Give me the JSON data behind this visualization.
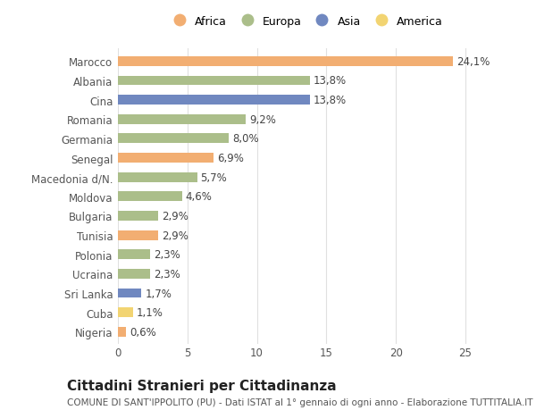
{
  "categories": [
    "Marocco",
    "Albania",
    "Cina",
    "Romania",
    "Germania",
    "Senegal",
    "Macedonia d/N.",
    "Moldova",
    "Bulgaria",
    "Tunisia",
    "Polonia",
    "Ucraina",
    "Sri Lanka",
    "Cuba",
    "Nigeria"
  ],
  "values": [
    24.1,
    13.8,
    13.8,
    9.2,
    8.0,
    6.9,
    5.7,
    4.6,
    2.9,
    2.9,
    2.3,
    2.3,
    1.7,
    1.1,
    0.6
  ],
  "continents": [
    "Africa",
    "Europa",
    "Asia",
    "Europa",
    "Europa",
    "Africa",
    "Europa",
    "Europa",
    "Europa",
    "Africa",
    "Europa",
    "Europa",
    "Asia",
    "America",
    "Africa"
  ],
  "colors": {
    "Africa": "#F2AE72",
    "Europa": "#ABBE8A",
    "Asia": "#7088C0",
    "America": "#F2D472"
  },
  "legend_order": [
    "Africa",
    "Europa",
    "Asia",
    "America"
  ],
  "title": "Cittadini Stranieri per Cittadinanza",
  "subtitle": "COMUNE DI SANT'IPPOLITO (PU) - Dati ISTAT al 1° gennaio di ogni anno - Elaborazione TUTTITALIA.IT",
  "xlim": [
    0,
    27
  ],
  "xticks": [
    0,
    5,
    10,
    15,
    20,
    25
  ],
  "bg_color": "#ffffff",
  "grid_color": "#e0e0e0",
  "label_fontsize": 8.5,
  "pct_fontsize": 8.5,
  "title_fontsize": 11,
  "subtitle_fontsize": 7.5,
  "bar_height": 0.5
}
